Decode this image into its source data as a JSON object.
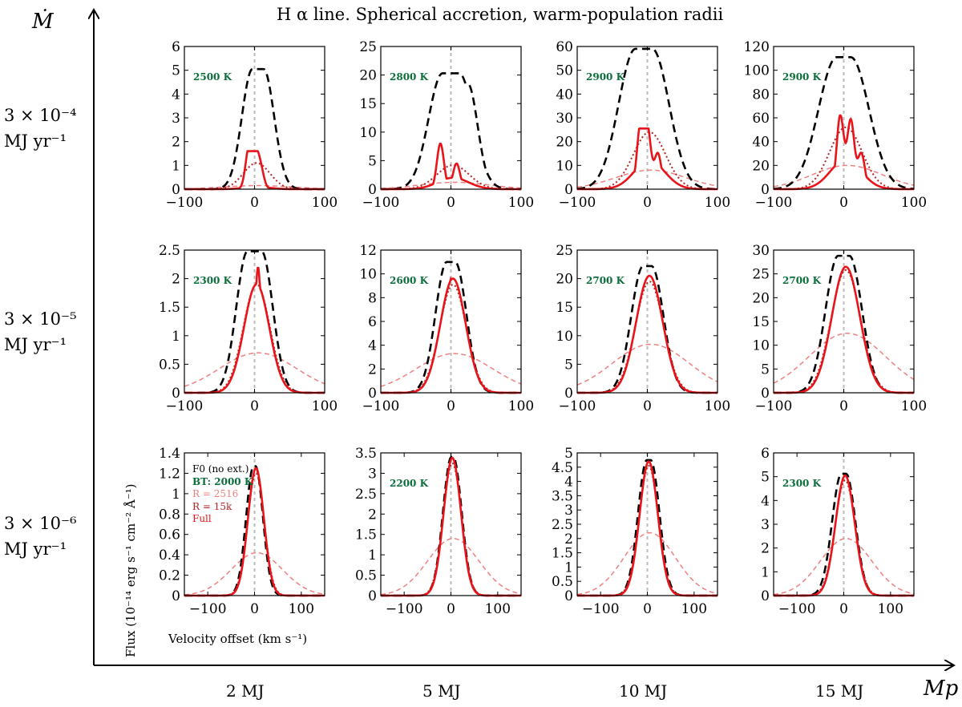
{
  "chart_data": {
    "type": "line",
    "title": "H α line. Spherical accretion, warm-population radii",
    "xlabel": "Velocity offset (km s⁻¹)",
    "ylabel": "Flux (10⁻¹⁴ erg s⁻¹ cm⁻² Å⁻¹)",
    "outer_axes": {
      "x": "Mp",
      "y": "Ṁ"
    },
    "column_labels": [
      {
        "text": "2 MJ",
        "value": 2
      },
      {
        "text": "5 MJ",
        "value": 5
      },
      {
        "text": "10 MJ",
        "value": 10
      },
      {
        "text": "15 MJ",
        "value": 15
      }
    ],
    "row_labels": [
      {
        "line1": "3 × 10⁻⁴",
        "line2": "MJ yr⁻¹"
      },
      {
        "line1": "3 × 10⁻⁵",
        "line2": "MJ yr⁻¹"
      },
      {
        "line1": "3 × 10⁻⁶",
        "line2": "MJ yr⁻¹"
      }
    ],
    "legend": [
      {
        "name": "F0 (no ext.)",
        "color": "#000000",
        "style": "dashed"
      },
      {
        "name": "BT: 2000 K",
        "color": "#0a6e3a",
        "style": "text"
      },
      {
        "name": "R = 2516",
        "color": "#f08080",
        "style": "thin-dashed"
      },
      {
        "name": "R = 15k",
        "color": "#b22222",
        "style": "dotted"
      },
      {
        "name": "Full",
        "color": "#e8141a",
        "style": "solid"
      }
    ],
    "panels": [
      {
        "row": 0,
        "col": 0,
        "temp": "2500 K",
        "xlim": [
          -100,
          100
        ],
        "xticks": [
          -100,
          0,
          100
        ],
        "ylim": [
          0,
          6
        ],
        "yticks": [
          "0",
          "1",
          "2",
          "3",
          "4",
          "5",
          "6"
        ],
        "black": {
          "peak": 5.05,
          "center": 5,
          "width": 15,
          "plateau": 8
        },
        "red": {
          "peaks": [
            [
              -8,
              1.6
            ],
            [
              0,
              1.3
            ],
            [
              8,
              0.9
            ]
          ],
          "base": 0.1,
          "width": 18
        },
        "dotted_peak": 1.1,
        "broad_peak": 0.15,
        "broad_sigma": 50
      },
      {
        "row": 0,
        "col": 1,
        "temp": "2800 K",
        "xlim": [
          -100,
          100
        ],
        "xticks": [
          -100,
          0,
          100
        ],
        "ylim": [
          0,
          25
        ],
        "yticks": [
          "0",
          "5",
          "10",
          "15",
          "20",
          "25"
        ],
        "black": {
          "peak": 20.3,
          "center": 0,
          "width": 20,
          "plateau": 12,
          "shoulder": 18.5
        },
        "red": {
          "peaks": [
            [
              -15,
              8
            ],
            [
              8,
              4.5
            ]
          ],
          "base": 2,
          "width": 22
        },
        "dotted_peak": 4.2,
        "broad_peak": 1.2,
        "broad_sigma": 50
      },
      {
        "row": 0,
        "col": 2,
        "temp": "2900 K",
        "xlim": [
          -100,
          100
        ],
        "xticks": [
          -100,
          0,
          100
        ],
        "ylim": [
          0,
          60
        ],
        "yticks": [
          "0",
          "10",
          "20",
          "30",
          "40",
          "50",
          "60"
        ],
        "black": {
          "peak": 59,
          "center": -5,
          "width": 24,
          "plateau": 12
        },
        "red": {
          "peaks": [
            [
              -10,
              25.5
            ],
            [
              0,
              25
            ],
            [
              15,
              15
            ]
          ],
          "base": 12,
          "width": 22
        },
        "dotted_peak": 24,
        "broad_peak": 8,
        "broad_sigma": 50
      },
      {
        "row": 0,
        "col": 3,
        "temp": "2900 K",
        "xlim": [
          -100,
          100
        ],
        "xticks": [
          -100,
          0,
          100
        ],
        "ylim": [
          0,
          120
        ],
        "yticks": [
          "0",
          "20",
          "40",
          "60",
          "80",
          "100",
          "120"
        ],
        "black": {
          "peak": 111,
          "center": 0,
          "width": 26,
          "plateau": 10
        },
        "red": {
          "peaks": [
            [
              -5,
              62
            ],
            [
              10,
              58
            ],
            [
              25,
              30
            ]
          ],
          "base": 25,
          "width": 22
        },
        "dotted_peak": 52,
        "broad_peak": 20,
        "broad_sigma": 50
      },
      {
        "row": 1,
        "col": 0,
        "temp": "2300 K",
        "xlim": [
          -100,
          100
        ],
        "xticks": [
          -100,
          0,
          100
        ],
        "ylim": [
          0,
          2.5
        ],
        "yticks": [
          "0",
          "0.5",
          "1",
          "1.5",
          "2",
          "2.5"
        ],
        "black": {
          "peak": 2.48,
          "center": 0,
          "width": 16,
          "plateau": 10
        },
        "red": {
          "peaks": [
            [
              5,
              2.2
            ]
          ],
          "base": 1.9,
          "width": 18
        },
        "dotted_peak": 1.9,
        "broad_peak": 0.7,
        "broad_sigma": 55
      },
      {
        "row": 1,
        "col": 1,
        "temp": "2600 K",
        "xlim": [
          -100,
          100
        ],
        "xticks": [
          -100,
          0,
          100
        ],
        "ylim": [
          0,
          12
        ],
        "yticks": [
          "0",
          "2",
          "4",
          "6",
          "8",
          "10",
          "12"
        ],
        "black": {
          "peak": 11,
          "center": 0,
          "width": 16,
          "plateau": 6
        },
        "red": {
          "peaks": [
            [
              0,
              9.6
            ]
          ],
          "base": 9.6,
          "width": 18
        },
        "dotted_peak": 9.1,
        "broad_peak": 3.3,
        "broad_sigma": 55
      },
      {
        "row": 1,
        "col": 2,
        "temp": "2700 K",
        "xlim": [
          -100,
          100
        ],
        "xticks": [
          -100,
          0,
          100
        ],
        "ylim": [
          0,
          25
        ],
        "yticks": [
          "0",
          "5",
          "10",
          "15",
          "20",
          "25"
        ],
        "black": {
          "peak": 22.2,
          "center": 0,
          "width": 17,
          "plateau": 6
        },
        "red": {
          "peaks": [
            [
              3,
              20.5
            ]
          ],
          "base": 20.5,
          "width": 19
        },
        "dotted_peak": 19.5,
        "broad_peak": 8.5,
        "broad_sigma": 55
      },
      {
        "row": 1,
        "col": 3,
        "temp": "2700 K",
        "xlim": [
          -100,
          100
        ],
        "xticks": [
          -100,
          0,
          100
        ],
        "ylim": [
          0,
          30
        ],
        "yticks": [
          "0",
          "5",
          "10",
          "15",
          "20",
          "25",
          "30"
        ],
        "black": {
          "peak": 28.8,
          "center": 0,
          "width": 18,
          "plateau": 8
        },
        "red": {
          "peaks": [
            [
              3,
              26.5
            ]
          ],
          "base": 26.5,
          "width": 20
        },
        "dotted_peak": 25.8,
        "broad_peak": 12.5,
        "broad_sigma": 55
      },
      {
        "row": 2,
        "col": 0,
        "temp": "",
        "xlim": [
          -150,
          150
        ],
        "xticks": [
          -100,
          0,
          100
        ],
        "ylim": [
          0,
          1.4
        ],
        "yticks": [
          "0",
          "0.2",
          "0.4",
          "0.6",
          "0.8",
          "1",
          "1.2",
          "1.4"
        ],
        "black": {
          "peak": 1.27,
          "center": 0,
          "width": 16,
          "plateau": 2
        },
        "red": {
          "peaks": [
            [
              3,
              1.25
            ]
          ],
          "base": 1.25,
          "width": 17
        },
        "dotted_peak": 1.2,
        "broad_peak": 0.42,
        "broad_sigma": 55
      },
      {
        "row": 2,
        "col": 1,
        "temp": "2200 K",
        "xlim": [
          -150,
          150
        ],
        "xticks": [
          -100,
          0,
          100
        ],
        "ylim": [
          0,
          3.5
        ],
        "yticks": [
          "0",
          "0.5",
          "1",
          "1.5",
          "2",
          "2.5",
          "3",
          "3.5"
        ],
        "black": {
          "peak": 3.4,
          "center": 3,
          "width": 18,
          "plateau": 2
        },
        "red": {
          "peaks": [
            [
              3,
              3.38
            ]
          ],
          "base": 3.38,
          "width": 18.5
        },
        "dotted_peak": 3.25,
        "broad_peak": 1.4,
        "broad_sigma": 55
      },
      {
        "row": 2,
        "col": 2,
        "temp": "",
        "xlim": [
          -150,
          150
        ],
        "xticks": [
          -100,
          0,
          100
        ],
        "ylim": [
          0,
          5
        ],
        "yticks": [
          "0",
          "0.5",
          "1",
          "1.5",
          "2",
          "2.5",
          "3",
          "3.5",
          "4",
          "4.5",
          "5"
        ],
        "black": {
          "peak": 4.75,
          "center": 3,
          "width": 19,
          "plateau": 4
        },
        "red": {
          "peaks": [
            [
              3,
              4.7
            ]
          ],
          "base": 4.7,
          "width": 19.5
        },
        "dotted_peak": 4.55,
        "broad_peak": 2.2,
        "broad_sigma": 55
      },
      {
        "row": 2,
        "col": 3,
        "temp": "2300 K",
        "xlim": [
          -150,
          150
        ],
        "xticks": [
          -100,
          0,
          100
        ],
        "ylim": [
          0,
          6
        ],
        "yticks": [
          "0",
          "1",
          "2",
          "3",
          "4",
          "5",
          "6"
        ],
        "black": {
          "peak": 5.12,
          "center": 0,
          "width": 20,
          "plateau": 5
        },
        "red": {
          "peaks": [
            [
              3,
              5.05
            ]
          ],
          "base": 5.05,
          "width": 20.5
        },
        "dotted_peak": 4.85,
        "broad_peak": 2.4,
        "broad_sigma": 55
      }
    ]
  }
}
